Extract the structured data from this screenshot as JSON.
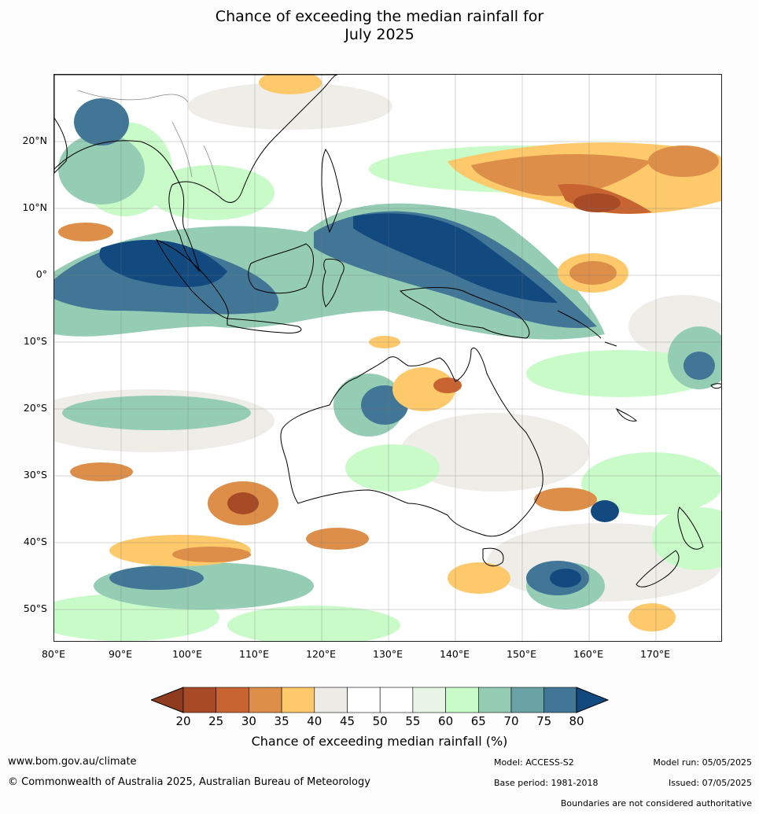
{
  "title": {
    "line1": "Chance of exceeding the median rainfall for",
    "line2": "July 2025"
  },
  "map": {
    "latitude_labels": [
      "20°N",
      "10°N",
      "0°",
      "10°S",
      "20°S",
      "30°S",
      "40°S",
      "50°S"
    ],
    "longitude_labels": [
      "80°E",
      "90°E",
      "100°E",
      "110°E",
      "120°E",
      "130°E",
      "140°E",
      "150°E",
      "160°E",
      "170°E"
    ],
    "extent": {
      "lon_min": 80,
      "lon_max": 180,
      "lat_min": -55,
      "lat_max": 30
    }
  },
  "legend": {
    "title": "Chance of exceeding median rainfall (%)",
    "ticks": [
      "20",
      "25",
      "30",
      "35",
      "40",
      "45",
      "50",
      "55",
      "60",
      "65",
      "70",
      "75",
      "80"
    ],
    "colors": {
      "below_20": "#8f3b1f",
      "20_25": "#a84a26",
      "25_30": "#c86432",
      "30_35": "#dd8f4a",
      "35_40": "#fdc96b",
      "40_45": "#ecebe6",
      "45_50": "#ffffff",
      "50_55": "#ffffff",
      "55_60": "#e9f5e6",
      "60_65": "#c9fbc9",
      "65_70": "#94cdb3",
      "70_75": "#6aa3a6",
      "75_80": "#427696",
      "above_80": "#124a80"
    }
  },
  "footer": {
    "website": "www.bom.gov.au/climate",
    "copyright": "© Commonwealth of Australia 2025, Australian Bureau of Meteorology",
    "model": "Model: ACCESS-S2",
    "base_period": "Base period: 1981-2018",
    "model_run": "Model run: 05/05/2025",
    "issued": "Issued: 07/05/2025",
    "disclaimer": "Boundaries are not considered authoritative"
  }
}
